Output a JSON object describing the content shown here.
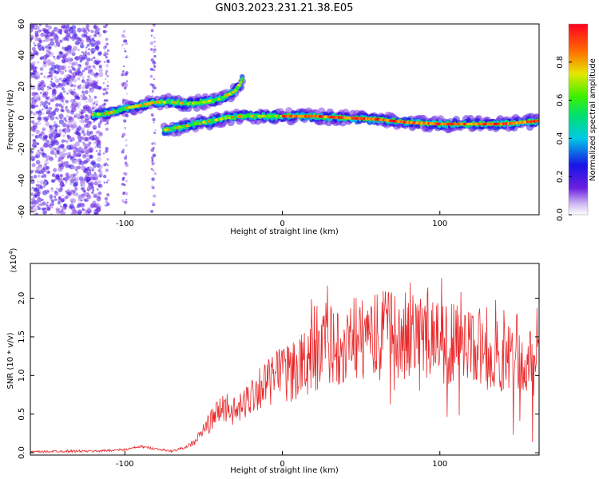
{
  "figure": {
    "title": "GN03.2023.231.21.38.E05"
  },
  "chart_data": [
    {
      "type": "heatmap",
      "xlabel": "Height of straight line (km)",
      "ylabel": "Frequency (Hz)",
      "xlim": [
        -160,
        163
      ],
      "ylim": [
        -62,
        60
      ],
      "xticks": [
        -100,
        0,
        100
      ],
      "yticks": [
        60,
        40,
        20,
        0,
        -20,
        -40,
        -60
      ],
      "colorbar": {
        "label": "Normalized spectral amplitude",
        "range": [
          0,
          1
        ],
        "ticks": [
          0.0,
          0.2,
          0.4,
          0.6,
          0.8
        ],
        "colormap": "rainbow (violet to red)"
      },
      "ridges": [
        {
          "x": [
            -120,
            -110,
            -100,
            -90,
            -80,
            -70,
            -60,
            -50,
            -40,
            -30,
            -25
          ],
          "y": [
            2,
            3,
            6,
            8,
            10,
            10,
            9,
            10,
            12,
            17,
            25
          ]
        },
        {
          "x": [
            -75,
            -65,
            -55,
            -45,
            -35,
            -25,
            -15,
            -5,
            5,
            20,
            40,
            60,
            80,
            100,
            120,
            140,
            163
          ],
          "y": [
            -8,
            -6,
            -4,
            -2,
            0,
            1,
            1,
            1,
            1,
            1,
            0,
            -1,
            -3,
            -4,
            -4,
            -4,
            -2
          ]
        }
      ]
    },
    {
      "type": "line",
      "xlabel": "Height of straight line (km)",
      "ylabel": "SNR (10 * v/v)",
      "yscale_label": "(x10",
      "yscale_exp": "4",
      "xlim": [
        -160,
        163
      ],
      "ylim": [
        -0.03,
        2.45
      ],
      "xticks": [
        -100,
        0,
        100
      ],
      "yticks": [
        0.0,
        0.5,
        1.0,
        1.5,
        2.0
      ],
      "color": "#e8292b",
      "series": [
        {
          "x": [
            -160,
            -140,
            -120,
            -100,
            -90,
            -80,
            -70,
            -60,
            -55,
            -50,
            -45,
            -40,
            -35,
            -30,
            -25,
            -20,
            -15,
            -10,
            -5,
            0,
            10,
            20,
            30,
            40,
            50,
            60,
            70,
            80,
            90,
            100,
            110,
            120,
            130,
            140,
            150,
            163
          ],
          "y": [
            0.01,
            0.02,
            0.02,
            0.04,
            0.08,
            0.05,
            0.02,
            0.08,
            0.15,
            0.3,
            0.42,
            0.55,
            0.6,
            0.52,
            0.6,
            0.75,
            0.85,
            0.9,
            0.95,
            1.0,
            1.1,
            1.25,
            1.35,
            1.45,
            1.5,
            1.55,
            1.55,
            1.5,
            1.5,
            1.45,
            1.4,
            1.35,
            1.3,
            1.25,
            1.2,
            1.1
          ]
        }
      ]
    }
  ]
}
